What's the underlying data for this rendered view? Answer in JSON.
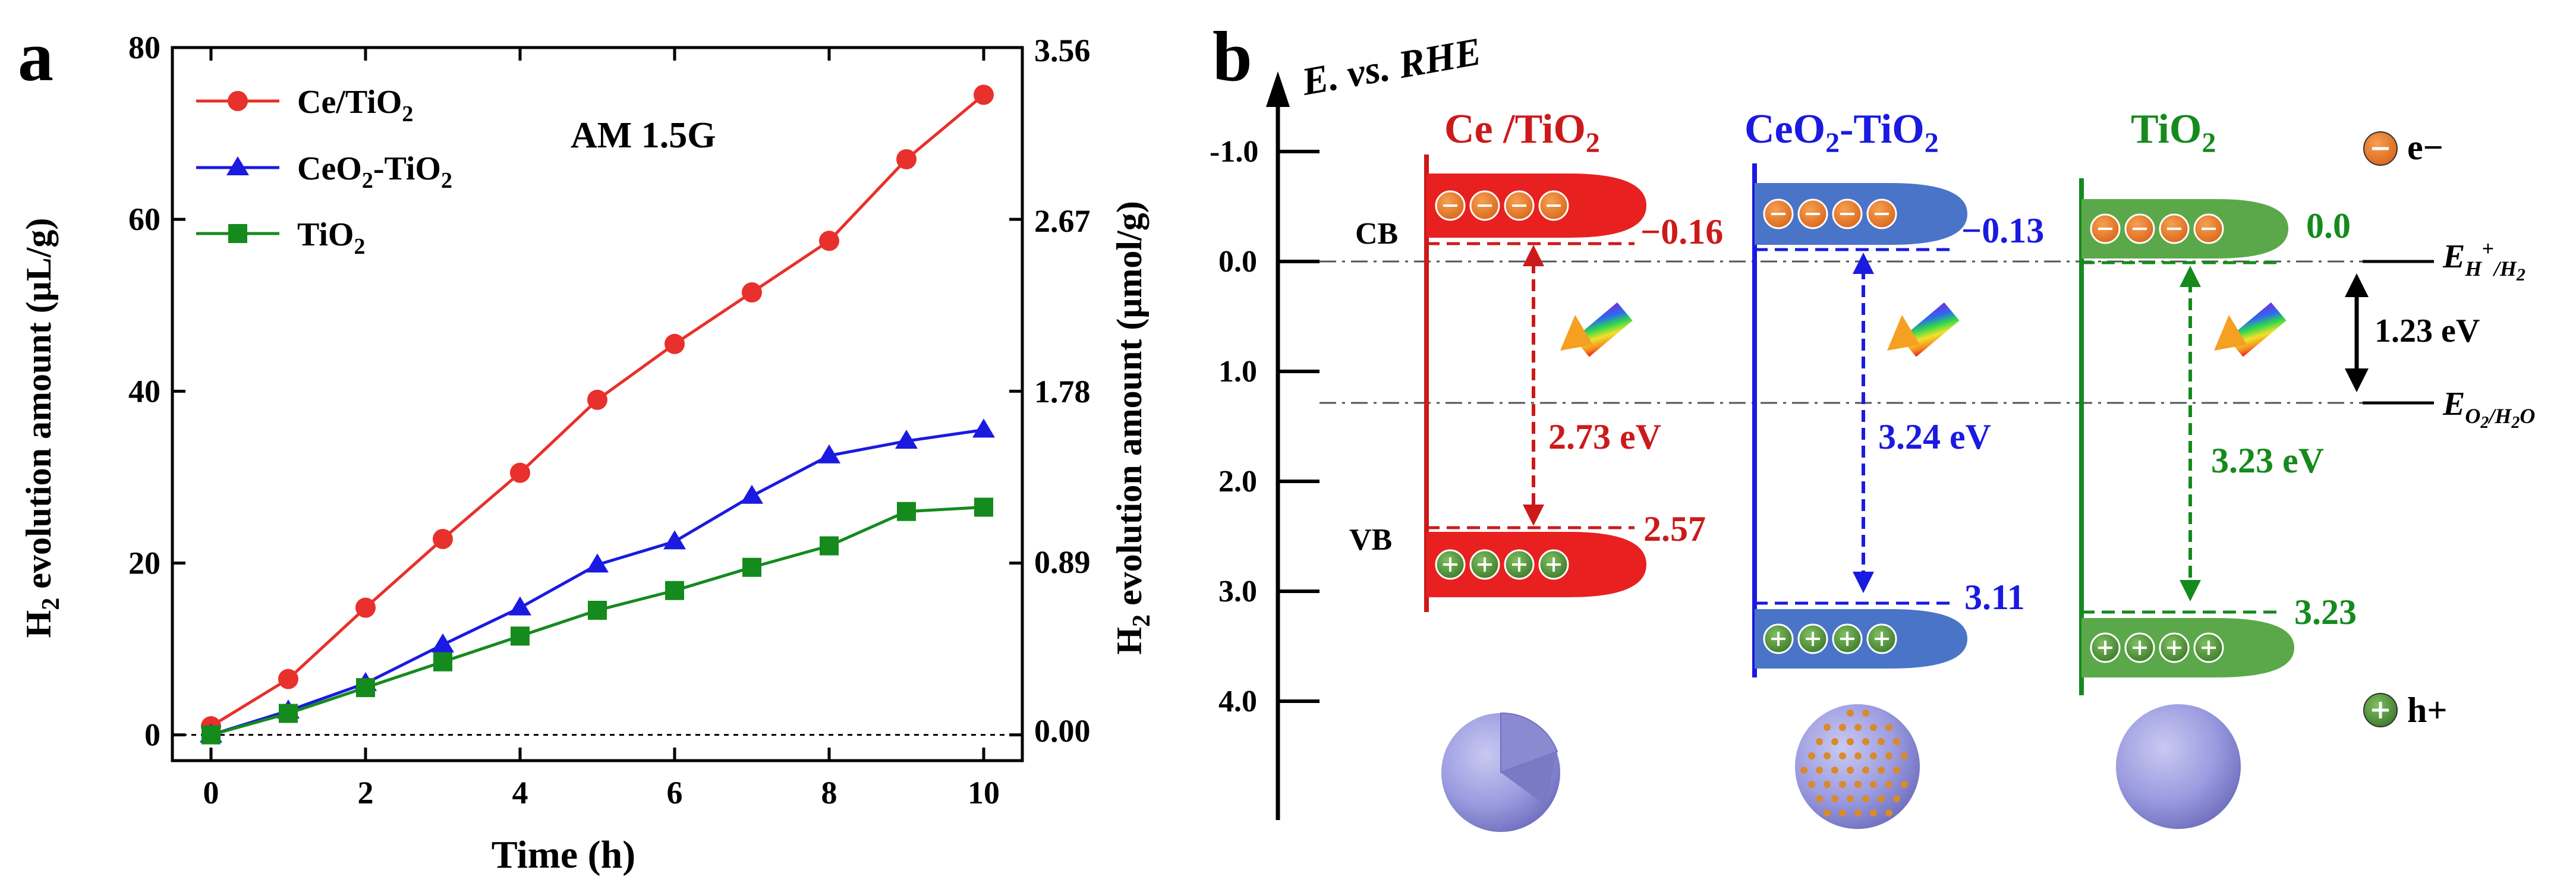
{
  "panel_a": {
    "label": "a",
    "annotation": "AM 1.5G",
    "left_axis_label": {
      "main": "H",
      "sub": "2",
      "rest": " evolution amount  (μL/g)"
    },
    "right_axis_label": {
      "main": "H",
      "sub": "2",
      "rest": " evolution amount (μmol/g)"
    },
    "right_ticks": [
      "3.56",
      "2.67",
      "1.78",
      "0.89",
      "0.00"
    ],
    "legend": [
      {
        "main": "Ce/TiO",
        "sub": "2",
        "rest": ""
      },
      {
        "main": "CeO",
        "sub": "2",
        "rest": "-TiO"
      },
      {
        "main": "TiO",
        "sub": "2",
        "rest": ""
      }
    ]
  },
  "chart_data": {
    "type": "line",
    "title": "",
    "xlabel": "Time (h)",
    "ylabel": "H2 evolution amount (μL/g)",
    "y2label": "H2 evolution amount (μmol/g)",
    "xlim": [
      -0.5,
      10.5
    ],
    "ylim": [
      -3,
      80
    ],
    "x_ticks": [
      0,
      2,
      4,
      6,
      8,
      10
    ],
    "y_ticks": [
      0,
      20,
      40,
      60,
      80
    ],
    "y2_ticks": [
      0.0,
      0.89,
      1.78,
      2.67,
      3.56
    ],
    "x": [
      0,
      1,
      2,
      3,
      4,
      5,
      6,
      7,
      8,
      9,
      10
    ],
    "series": [
      {
        "name": "Ce/TiO2",
        "color": "#e8302c",
        "marker": "circle",
        "values": [
          1.0,
          6.5,
          14.8,
          22.8,
          30.5,
          39.0,
          45.5,
          51.5,
          57.5,
          67.0,
          74.5
        ]
      },
      {
        "name": "CeO2-TiO2",
        "color": "#1a1ae0",
        "marker": "triangle",
        "values": [
          0,
          2.8,
          6.0,
          10.5,
          14.8,
          19.8,
          22.5,
          27.8,
          32.5,
          34.2,
          35.5
        ]
      },
      {
        "name": "TiO2",
        "color": "#158a1d",
        "marker": "square",
        "values": [
          0,
          2.5,
          5.5,
          8.5,
          11.5,
          14.5,
          16.8,
          19.5,
          22.0,
          26.0,
          26.5
        ]
      }
    ]
  },
  "panel_b": {
    "label": "b",
    "axis_title": "E. vs. RHE",
    "ticks": [
      "-1.0",
      "0.0",
      "1.0",
      "2.0",
      "3.0",
      "4.0"
    ],
    "ref_h": {
      "base": "E",
      "sub": "H",
      "sup": "+",
      "rest": "/H",
      "sub2": "2"
    },
    "ref_o": {
      "base": "E",
      "sub": "O",
      "sub_a": "2",
      "rest": "/H",
      "sub_b": "2",
      "rest2": "O"
    },
    "gap_ref": "1.23 eV",
    "legend_e": "e−",
    "legend_h": "h+",
    "cb_label": "CB",
    "vb_label": "VB",
    "materials": [
      {
        "name": {
          "main": "Ce /TiO",
          "sub": "2",
          "rest": ""
        },
        "color": "#cc1a1a",
        "fill": "#e82020",
        "cb": "−0.16",
        "vb": "2.57",
        "gap": "2.73 eV"
      },
      {
        "name": {
          "main": "CeO",
          "sub": "2",
          "rest": "-TiO"
        },
        "color": "#1a1ae0",
        "fill": "#4a74c8",
        "cb": "−0.13",
        "vb": "3.11",
        "gap": "3.24 eV"
      },
      {
        "name": {
          "main": "TiO",
          "sub": "2",
          "rest": ""
        },
        "color": "#158a1d",
        "fill": "#5aa84a",
        "cb": "0.0",
        "vb": "3.23",
        "gap": "3.23 eV"
      }
    ]
  }
}
